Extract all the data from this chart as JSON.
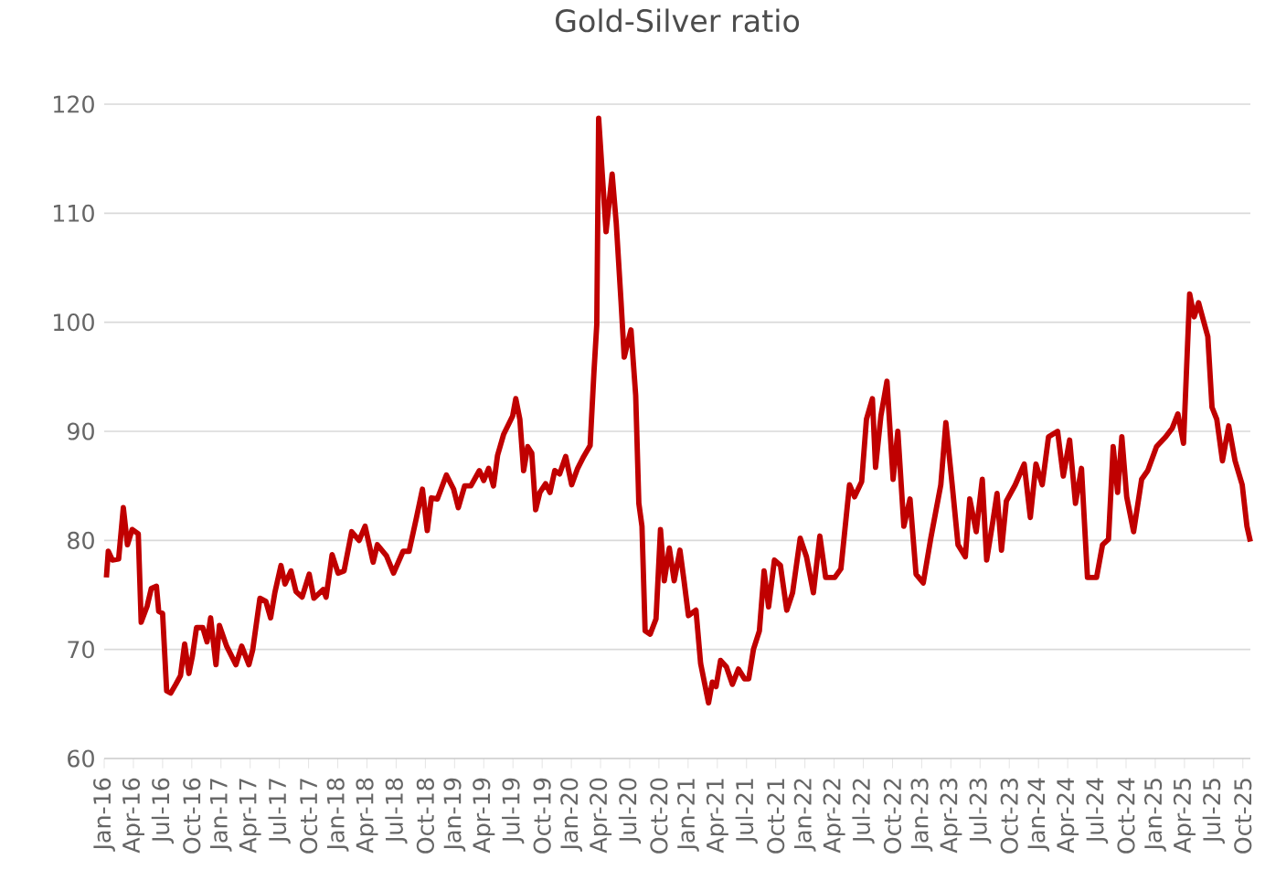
{
  "chart_data": {
    "type": "line",
    "title": "Gold-Silver ratio",
    "color": "#c00000",
    "grid": "y",
    "marker": "none",
    "x": [
      "2016-01-08",
      "2016-01-14",
      "2016-01-27",
      "2016-02-15",
      "2016-02-29",
      "2016-03-13",
      "2016-03-28",
      "2016-04-16",
      "2016-04-25",
      "2016-05-14",
      "2016-05-27",
      "2016-06-12",
      "2016-06-19",
      "2016-07-01",
      "2016-07-14",
      "2016-07-27",
      "2016-08-12",
      "2016-08-27",
      "2016-09-09",
      "2016-09-22",
      "2016-10-03",
      "2016-10-16",
      "2016-11-05",
      "2016-11-18",
      "2016-11-29",
      "2016-12-16",
      "2016-12-27",
      "2017-01-19",
      "2017-02-16",
      "2017-03-05",
      "2017-03-28",
      "2017-04-09",
      "2017-05-01",
      "2017-05-20",
      "2017-06-04",
      "2017-06-17",
      "2017-07-06",
      "2017-07-19",
      "2017-08-07",
      "2017-08-23",
      "2017-09-11",
      "2017-10-03",
      "2017-10-18",
      "2017-11-16",
      "2017-11-25",
      "2017-12-14",
      "2018-01-02",
      "2018-01-21",
      "2018-02-13",
      "2018-03-07",
      "2018-03-26",
      "2018-04-20",
      "2018-05-03",
      "2018-06-01",
      "2018-06-23",
      "2018-07-23",
      "2018-08-11",
      "2018-09-03",
      "2018-09-22",
      "2018-10-07",
      "2018-10-20",
      "2018-11-08",
      "2018-12-06",
      "2018-12-29",
      "2019-01-13",
      "2019-02-02",
      "2019-02-20",
      "2019-03-18",
      "2019-04-01",
      "2019-04-16",
      "2019-05-01",
      "2019-05-14",
      "2019-06-02",
      "2019-06-30",
      "2019-07-10",
      "2019-07-23",
      "2019-08-04",
      "2019-08-17",
      "2019-08-30",
      "2019-09-11",
      "2019-09-24",
      "2019-10-12",
      "2019-10-26",
      "2019-11-10",
      "2019-11-25",
      "2019-12-14",
      "2020-01-02",
      "2020-01-21",
      "2020-02-09",
      "2020-02-28",
      "2020-03-11",
      "2020-03-20",
      "2020-03-26",
      "2020-04-09",
      "2020-04-18",
      "2020-05-07",
      "2020-05-20",
      "2020-06-04",
      "2020-06-14",
      "2020-06-23",
      "2020-07-05",
      "2020-07-20",
      "2020-07-30",
      "2020-08-09",
      "2020-08-19",
      "2020-09-04",
      "2020-09-22",
      "2020-10-06",
      "2020-10-18",
      "2020-11-03",
      "2020-11-18",
      "2020-12-06",
      "2020-12-19",
      "2021-01-02",
      "2021-01-26",
      "2021-02-09",
      "2021-03-04",
      "2021-03-16",
      "2021-03-28",
      "2021-04-11",
      "2021-04-29",
      "2021-05-18",
      "2021-06-06",
      "2021-06-25",
      "2021-07-08",
      "2021-07-23",
      "2021-08-11",
      "2021-08-26",
      "2021-09-09",
      "2021-09-27",
      "2021-10-16",
      "2021-11-05",
      "2021-11-23",
      "2021-12-17",
      "2022-01-06",
      "2022-01-28",
      "2022-02-16",
      "2022-03-05",
      "2022-04-03",
      "2022-04-22",
      "2022-05-19",
      "2022-06-04",
      "2022-06-26",
      "2022-07-11",
      "2022-07-30",
      "2022-08-09",
      "2022-08-26",
      "2022-09-14",
      "2022-10-03",
      "2022-10-18",
      "2022-11-06",
      "2022-11-25",
      "2022-12-14",
      "2023-01-06",
      "2023-01-30",
      "2023-02-28",
      "2023-03-16",
      "2023-04-05",
      "2023-04-23",
      "2023-05-16",
      "2023-05-30",
      "2023-06-19",
      "2023-07-08",
      "2023-07-22",
      "2023-08-11",
      "2023-08-24",
      "2023-09-07",
      "2023-09-22",
      "2023-10-20",
      "2023-11-17",
      "2023-12-06",
      "2023-12-24",
      "2024-01-13",
      "2024-02-02",
      "2024-02-29",
      "2024-03-18",
      "2024-04-07",
      "2024-04-25",
      "2024-05-14",
      "2024-06-02",
      "2024-06-30",
      "2024-07-19",
      "2024-08-07",
      "2024-08-22",
      "2024-09-05",
      "2024-09-18",
      "2024-10-03",
      "2024-10-25",
      "2024-11-19",
      "2024-12-08",
      "2025-01-05",
      "2025-02-03",
      "2025-02-22",
      "2025-03-11",
      "2025-03-29",
      "2025-04-17",
      "2025-05-01",
      "2025-05-15",
      "2025-06-13",
      "2025-06-26",
      "2025-07-11",
      "2025-07-29",
      "2025-08-18",
      "2025-09-07",
      "2025-09-29",
      "2025-10-14",
      "2025-10-25"
    ],
    "values": [
      76.6,
      79.0,
      78.2,
      78.3,
      83.0,
      79.6,
      81.0,
      80.6,
      72.5,
      74.0,
      75.6,
      75.8,
      73.5,
      73.3,
      66.2,
      66.0,
      66.8,
      67.6,
      70.5,
      67.8,
      69.4,
      72.0,
      72.0,
      70.7,
      72.9,
      68.6,
      72.2,
      70.3,
      68.6,
      70.3,
      68.6,
      70.0,
      74.7,
      74.4,
      72.9,
      75.2,
      77.7,
      76.0,
      77.2,
      75.3,
      74.8,
      76.9,
      74.7,
      75.5,
      74.8,
      78.7,
      77.0,
      77.2,
      80.8,
      80.0,
      81.3,
      78.0,
      79.6,
      78.6,
      77.0,
      79.0,
      79.0,
      82.0,
      84.7,
      80.9,
      83.9,
      83.8,
      86.0,
      84.7,
      83.0,
      85.0,
      85.0,
      86.4,
      85.5,
      86.6,
      85.0,
      87.8,
      89.7,
      91.4,
      93.0,
      91.1,
      86.4,
      88.6,
      88.0,
      82.8,
      84.4,
      85.2,
      84.4,
      86.4,
      86.1,
      87.7,
      85.1,
      86.6,
      87.7,
      88.7,
      95.4,
      99.8,
      118.7,
      112.4,
      108.3,
      113.6,
      109.1,
      102.0,
      96.8,
      97.9,
      99.3,
      93.3,
      83.4,
      81.3,
      71.7,
      71.4,
      72.8,
      81.0,
      76.3,
      79.3,
      76.3,
      79.1,
      76.3,
      73.1,
      73.6,
      68.7,
      65.1,
      67.0,
      66.6,
      69.0,
      68.4,
      66.8,
      68.2,
      67.3,
      67.3,
      70.0,
      71.7,
      77.2,
      73.9,
      78.2,
      77.7,
      73.6,
      75.2,
      80.2,
      78.5,
      75.2,
      80.4,
      76.6,
      76.6,
      77.4,
      85.1,
      84.0,
      85.4,
      91.1,
      93.0,
      86.7,
      91.4,
      94.6,
      85.6,
      90.0,
      81.3,
      83.8,
      76.9,
      76.1,
      80.2,
      85.1,
      90.8,
      85.1,
      79.6,
      78.5,
      83.8,
      80.8,
      85.6,
      78.2,
      81.8,
      84.3,
      79.1,
      83.6,
      85.1,
      87.0,
      82.1,
      87.0,
      85.1,
      89.5,
      90.0,
      85.9,
      89.2,
      83.4,
      86.6,
      76.6,
      76.6,
      79.6,
      80.1,
      88.6,
      84.4,
      89.5,
      84.0,
      80.8,
      85.6,
      86.4,
      88.6,
      89.5,
      90.3,
      91.6,
      88.9,
      102.6,
      100.5,
      101.8,
      98.7,
      92.2,
      91.1,
      87.3,
      90.5,
      87.3,
      85.1,
      81.3,
      79.9
    ],
    "xlim": [
      "2016-01-01",
      "2025-10-25"
    ],
    "ylim": [
      60,
      120
    ],
    "yticks": [
      60,
      70,
      80,
      90,
      100,
      110,
      120
    ],
    "xticks": [
      {
        "value": "2016-01-01",
        "label": "Jan-16"
      },
      {
        "value": "2016-04-01",
        "label": "Apr-16"
      },
      {
        "value": "2016-07-01",
        "label": "Jul-16"
      },
      {
        "value": "2016-10-01",
        "label": "Oct-16"
      },
      {
        "value": "2017-01-01",
        "label": "Jan-17"
      },
      {
        "value": "2017-04-01",
        "label": "Apr-17"
      },
      {
        "value": "2017-07-01",
        "label": "Jul-17"
      },
      {
        "value": "2017-10-01",
        "label": "Oct-17"
      },
      {
        "value": "2018-01-01",
        "label": "Jan-18"
      },
      {
        "value": "2018-04-01",
        "label": "Apr-18"
      },
      {
        "value": "2018-07-01",
        "label": "Jul-18"
      },
      {
        "value": "2018-10-01",
        "label": "Oct-18"
      },
      {
        "value": "2019-01-01",
        "label": "Jan-19"
      },
      {
        "value": "2019-04-01",
        "label": "Apr-19"
      },
      {
        "value": "2019-07-01",
        "label": "Jul-19"
      },
      {
        "value": "2019-10-01",
        "label": "Oct-19"
      },
      {
        "value": "2020-01-01",
        "label": "Jan-20"
      },
      {
        "value": "2020-04-01",
        "label": "Apr-20"
      },
      {
        "value": "2020-07-01",
        "label": "Jul-20"
      },
      {
        "value": "2020-10-01",
        "label": "Oct-20"
      },
      {
        "value": "2021-01-01",
        "label": "Jan-21"
      },
      {
        "value": "2021-04-01",
        "label": "Apr-21"
      },
      {
        "value": "2021-07-01",
        "label": "Jul-21"
      },
      {
        "value": "2021-10-01",
        "label": "Oct-21"
      },
      {
        "value": "2022-01-01",
        "label": "Jan-22"
      },
      {
        "value": "2022-04-01",
        "label": "Apr-22"
      },
      {
        "value": "2022-07-01",
        "label": "Jul-22"
      },
      {
        "value": "2022-10-01",
        "label": "Oct-22"
      },
      {
        "value": "2023-01-01",
        "label": "Jan-23"
      },
      {
        "value": "2023-04-01",
        "label": "Apr-23"
      },
      {
        "value": "2023-07-01",
        "label": "Jul-23"
      },
      {
        "value": "2023-10-01",
        "label": "Oct-23"
      },
      {
        "value": "2024-01-01",
        "label": "Jan-24"
      },
      {
        "value": "2024-04-01",
        "label": "Apr-24"
      },
      {
        "value": "2024-07-01",
        "label": "Jul-24"
      },
      {
        "value": "2024-10-01",
        "label": "Oct-24"
      },
      {
        "value": "2025-01-01",
        "label": "Jan-25"
      },
      {
        "value": "2025-04-01",
        "label": "Apr-25"
      },
      {
        "value": "2025-07-01",
        "label": "Jul-25"
      },
      {
        "value": "2025-10-01",
        "label": "Oct-25"
      }
    ]
  }
}
